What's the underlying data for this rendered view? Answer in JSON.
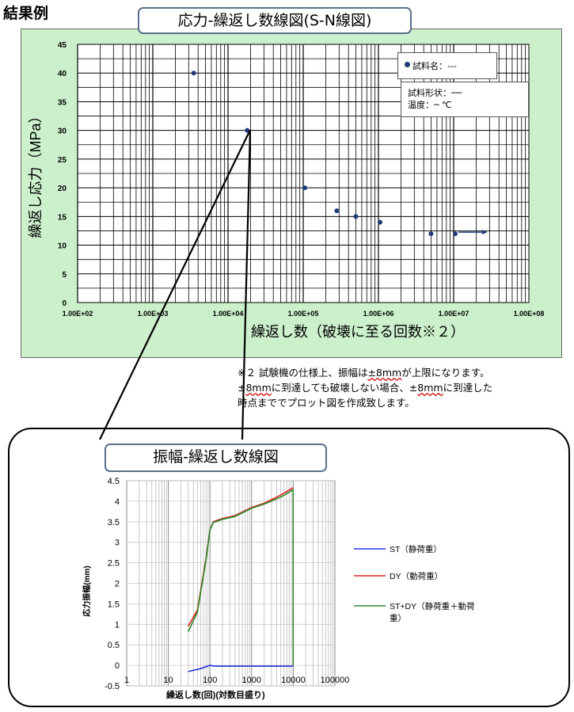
{
  "heading": "結果例",
  "sn_chart": {
    "title": "応力-繰返し数線図(S-N線図)",
    "legend_label": "試料名：---",
    "info_lines": [
      "試料形状：──",
      "温度：─ ℃"
    ],
    "xlabel": "繰返し数（破壊に至る回数※２）",
    "ylabel": "繰返し応力（MPa）"
  },
  "note": {
    "line1_a": "※２ 試験機の仕様上、振幅は",
    "line1_red": "±8mm",
    "line1_b": "が上限になります。",
    "line2_a": "±",
    "line2_red": "8mm",
    "line2_b": "に到達しても破壊しない場合、±",
    "line2_red2": "8mm",
    "line2_c": "に到達した",
    "line3": "時点まででプロット図を作成致します。"
  },
  "amp_chart": {
    "title": "振幅-繰返し数線図",
    "xlabel": "繰返し数(回)(対数目盛り)",
    "ylabel": "応力振幅(mm)"
  },
  "chart_data": [
    {
      "type": "scatter",
      "title": "応力-繰返し数線図(S-N線図)",
      "xlabel": "繰返し数（破壊に至る回数※２）",
      "ylabel": "繰返し応力（MPa）",
      "x_scale": "log",
      "xlim": [
        100,
        100000000
      ],
      "ylim": [
        0,
        45
      ],
      "x_ticks": [
        "1.00E+02",
        "1.00E+03",
        "1.00E+04",
        "1.00E+05",
        "1.00E+06",
        "1.00E+07",
        "1.00E+08"
      ],
      "y_ticks": [
        "0",
        "5",
        "10",
        "15",
        "20",
        "25",
        "30",
        "35",
        "40",
        "45"
      ],
      "grid": true,
      "legend": "top-right",
      "series": [
        {
          "name": "試料名：---",
          "color": "#1f3a78",
          "x": [
            3500,
            18000,
            105000,
            280000,
            500000,
            1050000,
            5000000,
            10500000
          ],
          "y": [
            40,
            30,
            20,
            16,
            15,
            14,
            12,
            12
          ]
        }
      ],
      "runout_arrow": {
        "from_x": 10500000,
        "to_x": 25000000,
        "y": 12
      }
    },
    {
      "type": "line",
      "title": "振幅-繰返し数線図",
      "xlabel": "繰返し数(回)(対数目盛り)",
      "ylabel": "応力振幅(mm)",
      "x_scale": "log",
      "xlim": [
        1,
        100000
      ],
      "ylim": [
        -0.5,
        4.5
      ],
      "x_ticks": [
        "1",
        "10",
        "100",
        "1000",
        "10000",
        "100000"
      ],
      "y_ticks": [
        "-0.5",
        "0",
        "0.5",
        "1",
        "1.5",
        "2",
        "2.5",
        "3",
        "3.5",
        "4",
        "4.5"
      ],
      "grid": true,
      "legend": "right",
      "series": [
        {
          "name": "ST（静荷重）",
          "color": "#2233dd",
          "x": [
            30,
            60,
            100,
            130,
            1000,
            10000
          ],
          "y": [
            -0.15,
            -0.08,
            0.0,
            -0.02,
            -0.02,
            -0.02
          ]
        },
        {
          "name": "DY（動荷重）",
          "color": "#dd2222",
          "x": [
            30,
            50,
            80,
            100,
            120,
            200,
            400,
            1000,
            2000,
            5000,
            9900
          ],
          "y": [
            0.95,
            1.35,
            2.6,
            3.3,
            3.5,
            3.58,
            3.65,
            3.85,
            3.95,
            4.15,
            4.33
          ]
        },
        {
          "name": "ST+DY（静荷重＋動荷重）",
          "color": "#2a8a2a",
          "x": [
            30,
            50,
            80,
            100,
            120,
            200,
            400,
            1000,
            2000,
            5000,
            9900,
            9950
          ],
          "y": [
            0.82,
            1.3,
            2.55,
            3.3,
            3.48,
            3.56,
            3.63,
            3.83,
            3.93,
            4.1,
            4.28,
            0.0
          ]
        }
      ]
    }
  ]
}
